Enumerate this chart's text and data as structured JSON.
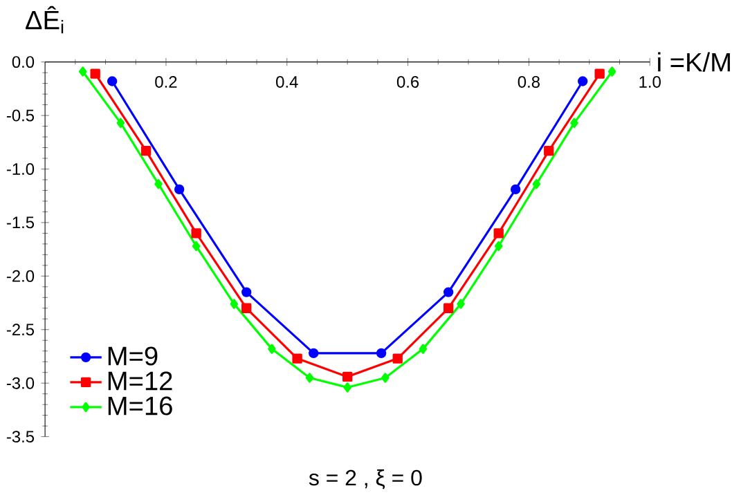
{
  "chart_data": {
    "type": "line",
    "xlabel": "i =K/M",
    "ylabel": "ΔÊ$_{i}$",
    "annotations": [
      "s = 2 , ξ = 0"
    ],
    "xlim": [
      0,
      1
    ],
    "ylim": [
      -3.5,
      0
    ],
    "xticks": [
      {
        "value": 0,
        "label": null
      },
      0.2,
      0.4,
      0.6,
      0.8,
      {
        "value": 1,
        "label": "1.0"
      }
    ],
    "yticks": [
      -3.5,
      {
        "value": -3,
        "label": "-3.0"
      },
      -2.5,
      {
        "value": -2,
        "label": "-2.0"
      },
      -1.5,
      {
        "value": -1,
        "label": "-1.0"
      },
      -0.5,
      {
        "value": 0,
        "label": "0.0"
      }
    ],
    "legend": "bottom left",
    "grid": false,
    "line_style": "solid",
    "series": [
      {
        "name": "M=9",
        "color": "#0000ff",
        "marker": "circle",
        "x": [
          0.111,
          0.222,
          0.333,
          0.444,
          0.556,
          0.667,
          0.778,
          0.889
        ],
        "values": [
          -0.18,
          -1.19,
          -2.15,
          -2.72,
          -2.72,
          -2.15,
          -1.19,
          -0.18
        ]
      },
      {
        "name": "M=12",
        "color": "#ff0000",
        "marker": "square",
        "x": [
          0.083,
          0.167,
          0.25,
          0.333,
          0.417,
          0.5,
          0.583,
          0.667,
          0.75,
          0.833,
          0.917
        ],
        "values": [
          -0.11,
          -0.83,
          -1.6,
          -2.3,
          -2.77,
          -2.94,
          -2.77,
          -2.3,
          -1.6,
          -0.83,
          -0.11
        ]
      },
      {
        "name": "M=16",
        "color": "#00ff00",
        "marker": "diamond",
        "x": [
          0.0625,
          0.125,
          0.1875,
          0.25,
          0.3125,
          0.375,
          0.4375,
          0.5,
          0.5625,
          0.625,
          0.6875,
          0.75,
          0.8125,
          0.875,
          0.9375
        ],
        "values": [
          -0.09,
          -0.57,
          -1.14,
          -1.72,
          -2.26,
          -2.68,
          -2.95,
          -3.04,
          -2.95,
          -2.68,
          -2.26,
          -1.72,
          -1.14,
          -0.57,
          -0.09
        ]
      }
    ]
  }
}
